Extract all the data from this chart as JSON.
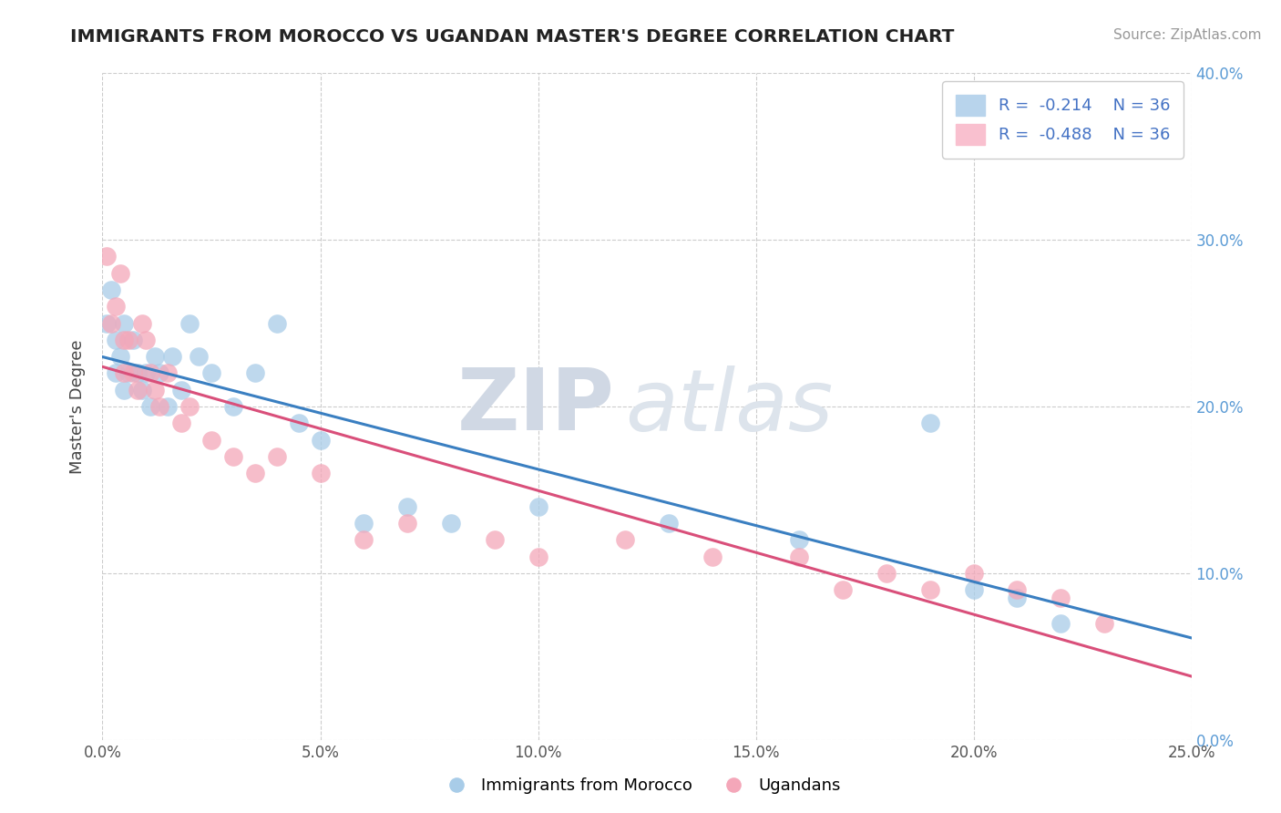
{
  "title": "IMMIGRANTS FROM MOROCCO VS UGANDAN MASTER'S DEGREE CORRELATION CHART",
  "source": "Source: ZipAtlas.com",
  "ylabel": "Master's Degree",
  "legend_label1": "Immigrants from Morocco",
  "legend_label2": "Ugandans",
  "r1": -0.214,
  "r2": -0.488,
  "n1": 36,
  "n2": 36,
  "xlim": [
    0.0,
    0.25
  ],
  "ylim": [
    0.0,
    0.4
  ],
  "xticks": [
    0.0,
    0.05,
    0.1,
    0.15,
    0.2,
    0.25
  ],
  "yticks": [
    0.0,
    0.1,
    0.2,
    0.3,
    0.4
  ],
  "color1": "#a8cce8",
  "color2": "#f4a7b9",
  "line_color1": "#3a7fc1",
  "line_color2": "#d94f7a",
  "background_color": "#ffffff",
  "watermark_zip": "ZIP",
  "watermark_atlas": "atlas",
  "blue_x": [
    0.001,
    0.002,
    0.003,
    0.003,
    0.004,
    0.005,
    0.005,
    0.006,
    0.007,
    0.008,
    0.009,
    0.01,
    0.011,
    0.012,
    0.013,
    0.015,
    0.016,
    0.018,
    0.02,
    0.022,
    0.025,
    0.03,
    0.035,
    0.04,
    0.045,
    0.05,
    0.06,
    0.07,
    0.08,
    0.1,
    0.13,
    0.16,
    0.19,
    0.2,
    0.21,
    0.22
  ],
  "blue_y": [
    0.25,
    0.27,
    0.22,
    0.24,
    0.23,
    0.21,
    0.25,
    0.22,
    0.24,
    0.22,
    0.21,
    0.22,
    0.2,
    0.23,
    0.22,
    0.2,
    0.23,
    0.21,
    0.25,
    0.23,
    0.22,
    0.2,
    0.22,
    0.25,
    0.19,
    0.18,
    0.13,
    0.14,
    0.13,
    0.14,
    0.13,
    0.12,
    0.19,
    0.09,
    0.085,
    0.07
  ],
  "pink_x": [
    0.001,
    0.002,
    0.003,
    0.004,
    0.005,
    0.005,
    0.006,
    0.007,
    0.008,
    0.009,
    0.01,
    0.011,
    0.012,
    0.013,
    0.015,
    0.018,
    0.02,
    0.025,
    0.03,
    0.035,
    0.04,
    0.05,
    0.06,
    0.07,
    0.09,
    0.1,
    0.12,
    0.14,
    0.16,
    0.17,
    0.18,
    0.19,
    0.2,
    0.21,
    0.22,
    0.23
  ],
  "pink_y": [
    0.29,
    0.25,
    0.26,
    0.28,
    0.24,
    0.22,
    0.24,
    0.22,
    0.21,
    0.25,
    0.24,
    0.22,
    0.21,
    0.2,
    0.22,
    0.19,
    0.2,
    0.18,
    0.17,
    0.16,
    0.17,
    0.16,
    0.12,
    0.13,
    0.12,
    0.11,
    0.12,
    0.11,
    0.11,
    0.09,
    0.1,
    0.09,
    0.1,
    0.09,
    0.085,
    0.07
  ]
}
